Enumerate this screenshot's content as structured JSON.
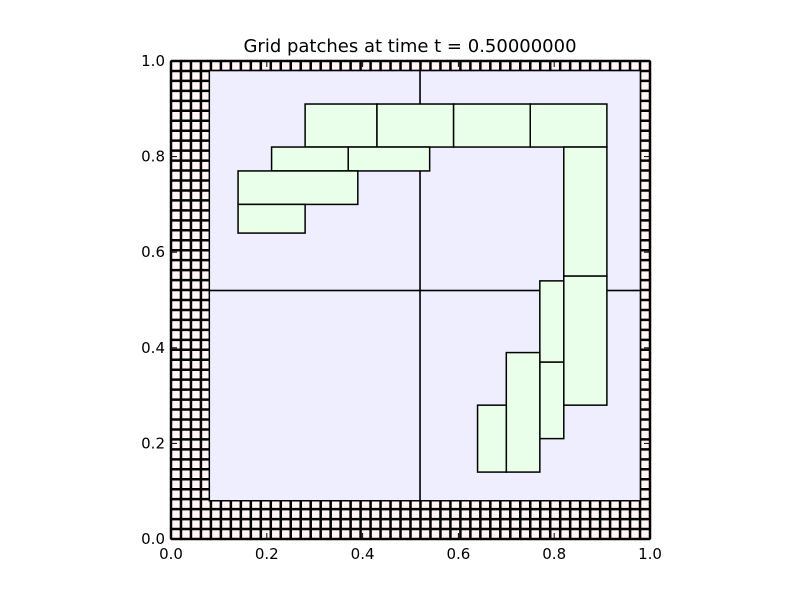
{
  "chart_data": {
    "type": "grid-patches",
    "title": "Grid patches at time t =     0.50000000",
    "xlim": [
      0.0,
      1.0
    ],
    "ylim": [
      0.0,
      1.0
    ],
    "xticks": [
      "0.0",
      "0.2",
      "0.4",
      "0.6",
      "0.8",
      "1.0"
    ],
    "yticks": [
      "0.0",
      "0.2",
      "0.4",
      "0.6",
      "0.8",
      "1.0"
    ],
    "xlabel": "",
    "ylabel": "",
    "ghost_cell_band": {
      "width": 0.08,
      "cells_per_unit": 48
    },
    "level1_patches": [
      {
        "x0": 0.08,
        "x1": 0.52,
        "y0": 0.08,
        "y1": 0.52
      },
      {
        "x0": 0.52,
        "x1": 0.98,
        "y0": 0.08,
        "y1": 0.52
      },
      {
        "x0": 0.08,
        "x1": 0.52,
        "y0": 0.52,
        "y1": 0.98
      },
      {
        "x0": 0.52,
        "x1": 0.98,
        "y0": 0.52,
        "y1": 0.98
      }
    ],
    "level2_patches": [
      {
        "x0": 0.28,
        "x1": 0.43,
        "y0": 0.82,
        "y1": 0.91
      },
      {
        "x0": 0.43,
        "x1": 0.59,
        "y0": 0.82,
        "y1": 0.91
      },
      {
        "x0": 0.59,
        "x1": 0.75,
        "y0": 0.82,
        "y1": 0.91
      },
      {
        "x0": 0.75,
        "x1": 0.91,
        "y0": 0.82,
        "y1": 0.91
      },
      {
        "x0": 0.21,
        "x1": 0.37,
        "y0": 0.77,
        "y1": 0.82
      },
      {
        "x0": 0.37,
        "x1": 0.54,
        "y0": 0.77,
        "y1": 0.82
      },
      {
        "x0": 0.14,
        "x1": 0.39,
        "y0": 0.7,
        "y1": 0.77
      },
      {
        "x0": 0.14,
        "x1": 0.28,
        "y0": 0.64,
        "y1": 0.7
      },
      {
        "x0": 0.82,
        "x1": 0.91,
        "y0": 0.55,
        "y1": 0.82
      },
      {
        "x0": 0.82,
        "x1": 0.91,
        "y0": 0.28,
        "y1": 0.55
      },
      {
        "x0": 0.77,
        "x1": 0.82,
        "y0": 0.37,
        "y1": 0.54
      },
      {
        "x0": 0.77,
        "x1": 0.82,
        "y0": 0.21,
        "y1": 0.37
      },
      {
        "x0": 0.7,
        "x1": 0.77,
        "y0": 0.14,
        "y1": 0.39
      },
      {
        "x0": 0.64,
        "x1": 0.7,
        "y0": 0.14,
        "y1": 0.28
      }
    ],
    "colors": {
      "level1_fill": "#eeeeff",
      "level2_fill": "#eaffea",
      "ghost_fill": "#fff5f5",
      "edge": "#000000"
    },
    "grid": false
  }
}
